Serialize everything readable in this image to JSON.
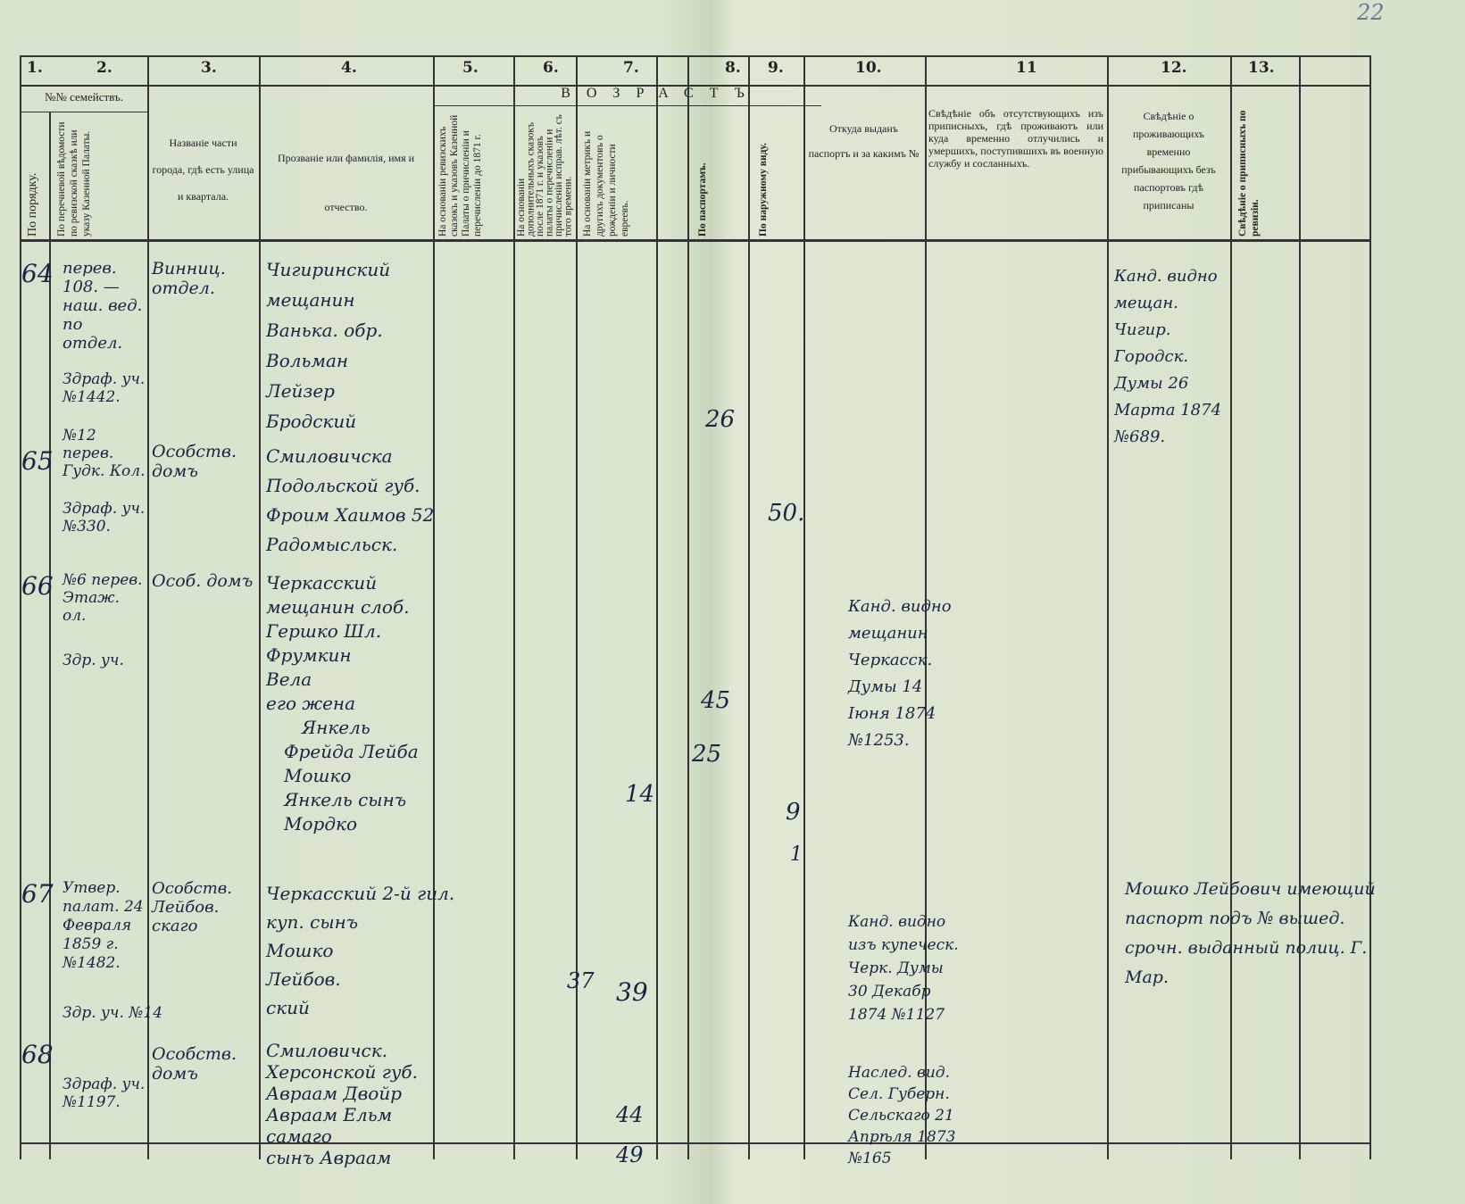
{
  "page_number": "22",
  "column_numbers": [
    "1.",
    "2.",
    "3.",
    "4.",
    "5.",
    "6.",
    "7.",
    "8.",
    "9.",
    "10.",
    "11",
    "12.",
    "13."
  ],
  "headers": {
    "families": "№№ семействъ.",
    "in_order": "По порядку.",
    "by_list": "По перечневой вѣдомости по ревизской сказкѣ или указу Казенной Палаты.",
    "district": "Названіе части города, гдѣ есть улица и квартала.",
    "name": "Прозваніе или фамилія, имя и отчество.",
    "age": "ВОЗРАСТЪ",
    "age_cols": [
      "На основаніи ревизскихъ сказокъ и указовъ Казенной Палаты о причисленіи и перечисленіи до 1871 г.",
      "На основаніи дополнительныхъ сказокъ после 1871 г. и указовъ палаты о перечисленіи и причисленіи исправ. лѣт. съ того времени.",
      "На основаніи метрикъ и другихъ документовъ о рожденіи и личности евреевъ.",
      "По паспортамъ.",
      "По наружному виду."
    ],
    "passport": "Откуда выданъ паспортъ и за какимъ №",
    "absent": "Свѣдѣніе объ отсутствующихъ изъ приписныхъ, гдѣ проживаютъ или куда временно отлучились и умершихъ, поступившихъ въ военную службу и сосланныхъ.",
    "temporary": "Свѣдѣніе о проживающихъ временно прибывающихъ безъ паспортовъ гдѣ приписаны",
    "registered": "Свѣдѣніе о приписныхъ по ревизіи."
  },
  "entries": [
    {
      "no": "64",
      "list": "перев. 108. — наш. вед. по отдел.",
      "ref": "Здраф. уч. №1442.",
      "district": "Винниц. отдел.",
      "names": [
        "Чигиринский",
        "мещанин",
        "Ванька. обр.",
        "Вольман",
        "Лейзер",
        "Бродский"
      ],
      "age_passport": "26",
      "temporary": "Канд. видно мещан. Чигир. Городск. Думы 26 Марта 1874 №689."
    },
    {
      "no": "65",
      "list": "№12 перев. Гудк. Кол.",
      "ref": "Здраф. уч. №330.",
      "district": "Особств. домъ",
      "names": [
        "Смиловичска",
        "Подольской губ.",
        "Фроим Хаимов 52",
        "Радомысльск."
      ],
      "age_view": "50."
    },
    {
      "no": "66",
      "list": "№6 перев. Этаж. ол.",
      "ref": "Здр. уч.",
      "district": "Особ. домъ",
      "names": [
        "Черкасский",
        "мещанин слоб.",
        "Гершко Шл.",
        "Фрумкин",
        "Вела",
        "его жена",
        "Янкель",
        "Фрейда Лейба",
        "Мошко",
        "Янкель сынъ",
        "Мордко"
      ],
      "ages": [
        "45",
        "25",
        "14",
        "9",
        "1"
      ],
      "passport": "Канд. видно мещанин Черкасск. Думы 14 Іюня 1874 №1253."
    },
    {
      "no": "67",
      "list": "Утвер. палат. 24 Февраля 1859 г. №1482.",
      "ref": "Здр. уч. №14",
      "district": "Особств. Лейбов. скаго",
      "names": [
        "Черкасский 2-й гил.",
        "куп. сынъ",
        "Мошко",
        "Лейбов.",
        "ский"
      ],
      "ages": [
        "37",
        "39"
      ],
      "passport": "Канд. видно изъ купеческ. Черк. Думы 30 Декабр 1874 №1127",
      "absent": "Мошко Лейбович имеющий паспорт подъ № вышед. срочн. выданный полиц. Г. Мар."
    },
    {
      "no": "68",
      "ref": "Здраф. уч. №1197.",
      "district": "Особств. домъ",
      "names": [
        "Смиловичск.",
        "Херсонской губ.",
        "Авраам Двойр",
        "Авраам Ельм",
        "самаго",
        "сынъ Авраам"
      ],
      "ages": [
        "44",
        "49"
      ],
      "passport": "Наслед. вид. Сел. Губерн. Сельскаго 21 Апрѣля 1873 №165"
    }
  ]
}
